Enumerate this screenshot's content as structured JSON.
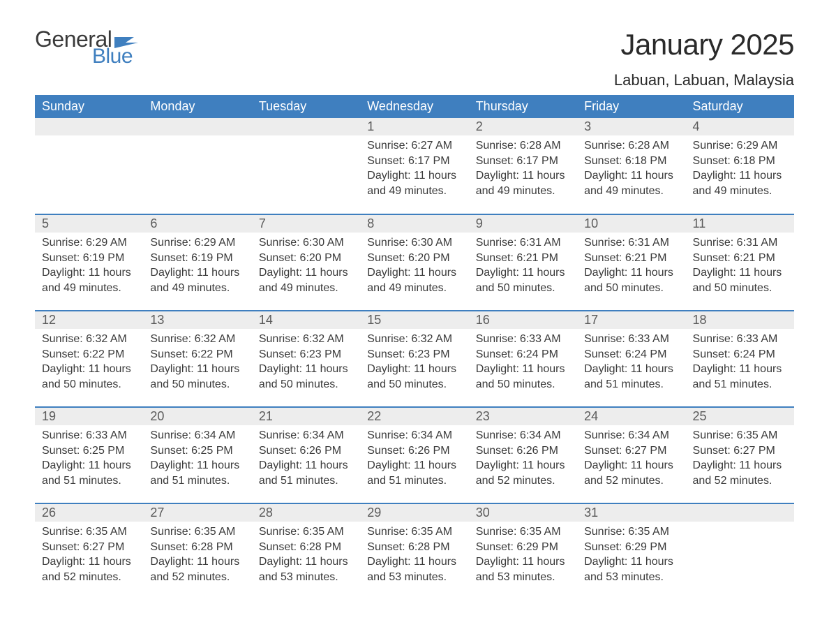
{
  "brand": {
    "name_part1": "General",
    "name_part2": "Blue",
    "flag_color": "#3f7fbf",
    "text_color_dark": "#3a3a3a",
    "text_color_blue": "#3f7fbf"
  },
  "title": "January 2025",
  "location": "Labuan, Labuan, Malaysia",
  "colors": {
    "header_bg": "#3f7fbf",
    "header_text": "#ffffff",
    "daynum_bg": "#ededed",
    "daynum_text": "#5a5a5a",
    "row_divider": "#3f7fbf",
    "body_text": "#3a3a3a",
    "page_bg": "#ffffff"
  },
  "typography": {
    "title_fontsize": 42,
    "location_fontsize": 22,
    "header_fontsize": 18,
    "daynum_fontsize": 18,
    "body_fontsize": 16
  },
  "weekdays": [
    "Sunday",
    "Monday",
    "Tuesday",
    "Wednesday",
    "Thursday",
    "Friday",
    "Saturday"
  ],
  "weeks": [
    [
      null,
      null,
      null,
      {
        "n": "1",
        "sunrise": "Sunrise: 6:27 AM",
        "sunset": "Sunset: 6:17 PM",
        "daylight": "Daylight: 11 hours and 49 minutes."
      },
      {
        "n": "2",
        "sunrise": "Sunrise: 6:28 AM",
        "sunset": "Sunset: 6:17 PM",
        "daylight": "Daylight: 11 hours and 49 minutes."
      },
      {
        "n": "3",
        "sunrise": "Sunrise: 6:28 AM",
        "sunset": "Sunset: 6:18 PM",
        "daylight": "Daylight: 11 hours and 49 minutes."
      },
      {
        "n": "4",
        "sunrise": "Sunrise: 6:29 AM",
        "sunset": "Sunset: 6:18 PM",
        "daylight": "Daylight: 11 hours and 49 minutes."
      }
    ],
    [
      {
        "n": "5",
        "sunrise": "Sunrise: 6:29 AM",
        "sunset": "Sunset: 6:19 PM",
        "daylight": "Daylight: 11 hours and 49 minutes."
      },
      {
        "n": "6",
        "sunrise": "Sunrise: 6:29 AM",
        "sunset": "Sunset: 6:19 PM",
        "daylight": "Daylight: 11 hours and 49 minutes."
      },
      {
        "n": "7",
        "sunrise": "Sunrise: 6:30 AM",
        "sunset": "Sunset: 6:20 PM",
        "daylight": "Daylight: 11 hours and 49 minutes."
      },
      {
        "n": "8",
        "sunrise": "Sunrise: 6:30 AM",
        "sunset": "Sunset: 6:20 PM",
        "daylight": "Daylight: 11 hours and 49 minutes."
      },
      {
        "n": "9",
        "sunrise": "Sunrise: 6:31 AM",
        "sunset": "Sunset: 6:21 PM",
        "daylight": "Daylight: 11 hours and 50 minutes."
      },
      {
        "n": "10",
        "sunrise": "Sunrise: 6:31 AM",
        "sunset": "Sunset: 6:21 PM",
        "daylight": "Daylight: 11 hours and 50 minutes."
      },
      {
        "n": "11",
        "sunrise": "Sunrise: 6:31 AM",
        "sunset": "Sunset: 6:21 PM",
        "daylight": "Daylight: 11 hours and 50 minutes."
      }
    ],
    [
      {
        "n": "12",
        "sunrise": "Sunrise: 6:32 AM",
        "sunset": "Sunset: 6:22 PM",
        "daylight": "Daylight: 11 hours and 50 minutes."
      },
      {
        "n": "13",
        "sunrise": "Sunrise: 6:32 AM",
        "sunset": "Sunset: 6:22 PM",
        "daylight": "Daylight: 11 hours and 50 minutes."
      },
      {
        "n": "14",
        "sunrise": "Sunrise: 6:32 AM",
        "sunset": "Sunset: 6:23 PM",
        "daylight": "Daylight: 11 hours and 50 minutes."
      },
      {
        "n": "15",
        "sunrise": "Sunrise: 6:32 AM",
        "sunset": "Sunset: 6:23 PM",
        "daylight": "Daylight: 11 hours and 50 minutes."
      },
      {
        "n": "16",
        "sunrise": "Sunrise: 6:33 AM",
        "sunset": "Sunset: 6:24 PM",
        "daylight": "Daylight: 11 hours and 50 minutes."
      },
      {
        "n": "17",
        "sunrise": "Sunrise: 6:33 AM",
        "sunset": "Sunset: 6:24 PM",
        "daylight": "Daylight: 11 hours and 51 minutes."
      },
      {
        "n": "18",
        "sunrise": "Sunrise: 6:33 AM",
        "sunset": "Sunset: 6:24 PM",
        "daylight": "Daylight: 11 hours and 51 minutes."
      }
    ],
    [
      {
        "n": "19",
        "sunrise": "Sunrise: 6:33 AM",
        "sunset": "Sunset: 6:25 PM",
        "daylight": "Daylight: 11 hours and 51 minutes."
      },
      {
        "n": "20",
        "sunrise": "Sunrise: 6:34 AM",
        "sunset": "Sunset: 6:25 PM",
        "daylight": "Daylight: 11 hours and 51 minutes."
      },
      {
        "n": "21",
        "sunrise": "Sunrise: 6:34 AM",
        "sunset": "Sunset: 6:26 PM",
        "daylight": "Daylight: 11 hours and 51 minutes."
      },
      {
        "n": "22",
        "sunrise": "Sunrise: 6:34 AM",
        "sunset": "Sunset: 6:26 PM",
        "daylight": "Daylight: 11 hours and 51 minutes."
      },
      {
        "n": "23",
        "sunrise": "Sunrise: 6:34 AM",
        "sunset": "Sunset: 6:26 PM",
        "daylight": "Daylight: 11 hours and 52 minutes."
      },
      {
        "n": "24",
        "sunrise": "Sunrise: 6:34 AM",
        "sunset": "Sunset: 6:27 PM",
        "daylight": "Daylight: 11 hours and 52 minutes."
      },
      {
        "n": "25",
        "sunrise": "Sunrise: 6:35 AM",
        "sunset": "Sunset: 6:27 PM",
        "daylight": "Daylight: 11 hours and 52 minutes."
      }
    ],
    [
      {
        "n": "26",
        "sunrise": "Sunrise: 6:35 AM",
        "sunset": "Sunset: 6:27 PM",
        "daylight": "Daylight: 11 hours and 52 minutes."
      },
      {
        "n": "27",
        "sunrise": "Sunrise: 6:35 AM",
        "sunset": "Sunset: 6:28 PM",
        "daylight": "Daylight: 11 hours and 52 minutes."
      },
      {
        "n": "28",
        "sunrise": "Sunrise: 6:35 AM",
        "sunset": "Sunset: 6:28 PM",
        "daylight": "Daylight: 11 hours and 53 minutes."
      },
      {
        "n": "29",
        "sunrise": "Sunrise: 6:35 AM",
        "sunset": "Sunset: 6:28 PM",
        "daylight": "Daylight: 11 hours and 53 minutes."
      },
      {
        "n": "30",
        "sunrise": "Sunrise: 6:35 AM",
        "sunset": "Sunset: 6:29 PM",
        "daylight": "Daylight: 11 hours and 53 minutes."
      },
      {
        "n": "31",
        "sunrise": "Sunrise: 6:35 AM",
        "sunset": "Sunset: 6:29 PM",
        "daylight": "Daylight: 11 hours and 53 minutes."
      },
      null
    ]
  ]
}
